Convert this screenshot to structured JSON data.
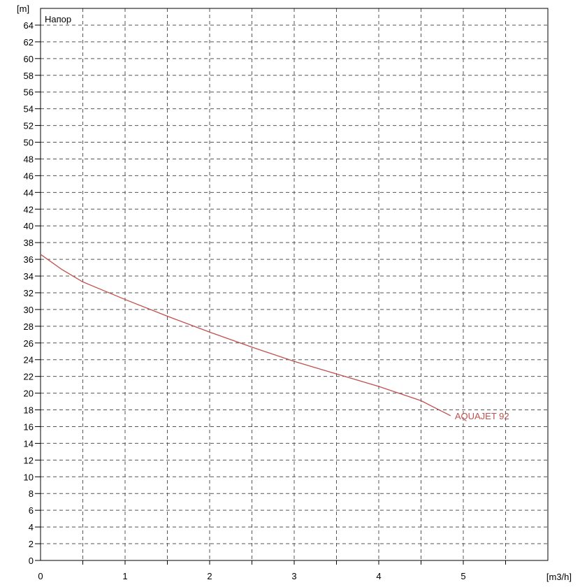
{
  "chart_data": {
    "type": "line",
    "title": "Напор",
    "xlabel": "[m3/h]",
    "ylabel": "[m]",
    "xlim": [
      0,
      6
    ],
    "ylim": [
      0,
      66
    ],
    "x_ticks": [
      0,
      1,
      2,
      3,
      4,
      5
    ],
    "y_ticks": [
      0,
      2,
      4,
      6,
      8,
      10,
      12,
      14,
      16,
      18,
      20,
      22,
      24,
      26,
      28,
      30,
      32,
      34,
      36,
      38,
      40,
      42,
      44,
      46,
      48,
      50,
      52,
      54,
      56,
      58,
      60,
      62,
      64
    ],
    "grid": true,
    "series": [
      {
        "name": "AQUAJET 92",
        "color": "#c0504d",
        "x": [
          0,
          0.25,
          0.5,
          1.0,
          1.5,
          2.0,
          2.5,
          3.0,
          3.5,
          4.0,
          4.5,
          4.85
        ],
        "y": [
          36.6,
          34.8,
          33.3,
          31.2,
          29.2,
          27.3,
          25.5,
          23.8,
          22.3,
          20.8,
          19.1,
          17.3
        ]
      }
    ]
  }
}
